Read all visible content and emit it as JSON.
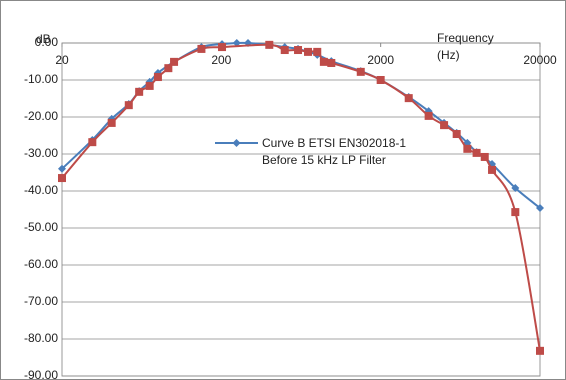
{
  "chart_data": {
    "type": "line",
    "ylabel": "dB",
    "xlabel": "Frequency (Hz)",
    "xscale": "log",
    "xlim": [
      20,
      20000
    ],
    "xticks": [
      20,
      200,
      2000,
      20000
    ],
    "ylim": [
      -90,
      0
    ],
    "yticks": [
      {
        "value": 0,
        "label": "0.00"
      },
      {
        "value": -10,
        "label": "-10.00"
      },
      {
        "value": -20,
        "label": "-20.00"
      },
      {
        "value": -30,
        "label": "-30.00"
      },
      {
        "value": -40,
        "label": "-40.00"
      },
      {
        "value": -50,
        "label": "-50.00"
      },
      {
        "value": -60,
        "label": "-60.00"
      },
      {
        "value": -70,
        "label": "-70.00"
      },
      {
        "value": -80,
        "label": "-80.00"
      },
      {
        "value": -90,
        "label": "-90.00"
      }
    ],
    "grid": true,
    "series": [
      {
        "name": "Curve B ETSI EN302018-1 Before 15 kHz LP Filter",
        "color": "#4a7ebb",
        "marker": "diamond",
        "x": [
          20,
          31,
          41,
          52.5,
          61,
          71,
          80,
          101,
          150,
          202,
          250,
          294,
          400,
          500,
          606,
          800,
          980,
          1500,
          2000,
          3000,
          4000,
          5000,
          6000,
          7000,
          8000,
          10000,
          14000,
          20000
        ],
        "values": [
          -34,
          -26.2,
          -20.5,
          -16.5,
          -13,
          -10.5,
          -8.1,
          -5.1,
          -1.1,
          -0.3,
          0,
          0,
          -0.5,
          -1.1,
          -1.6,
          -3.2,
          -4.9,
          -7.6,
          -10,
          -14.6,
          -18.4,
          -21.6,
          -24.3,
          -27,
          -29.5,
          -32.7,
          -39.2,
          -44.6
        ]
      },
      {
        "color": "#be4b48",
        "marker": "square",
        "x": [
          20,
          31,
          41,
          52.5,
          61,
          71,
          80,
          93,
          101,
          150,
          202,
          400,
          500,
          606,
          700,
          800,
          880,
          980,
          1500,
          2000,
          3000,
          4000,
          5000,
          6000,
          7000,
          8000,
          9000,
          10000,
          14000,
          20000
        ],
        "values": [
          -36.5,
          -26.8,
          -21.6,
          -16.8,
          -13.2,
          -11.6,
          -9.2,
          -6.8,
          -5.1,
          -1.6,
          -1.1,
          -0.5,
          -1.9,
          -1.9,
          -2.4,
          -2.4,
          -5.1,
          -5.4,
          -7.8,
          -10,
          -14.9,
          -19.7,
          -22.2,
          -24.6,
          -28.6,
          -29.7,
          -30.8,
          -34.3,
          -45.7,
          -83.2
        ]
      }
    ]
  }
}
